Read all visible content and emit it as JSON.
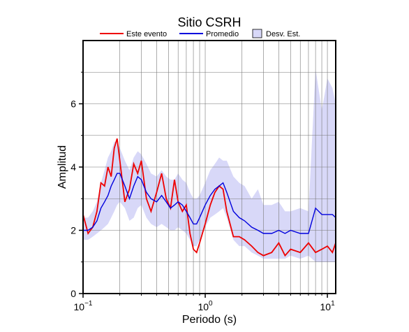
{
  "chart_data": {
    "type": "line",
    "title": "Sitio CSRH",
    "xlabel": "Periodo (s)",
    "ylabel": "Amplitud",
    "xlog": true,
    "grid": true,
    "legend": "top",
    "xlim": [
      0.1,
      11.7
    ],
    "ylim": [
      0,
      8
    ],
    "xticks": [
      {
        "value": 0.1,
        "label": "10",
        "exponent": "−1"
      },
      {
        "value": 1,
        "label": "10",
        "exponent": "0"
      },
      {
        "value": 10,
        "label": "10",
        "exponent": "1"
      }
    ],
    "xminor": [
      0.2,
      0.3,
      0.4,
      0.5,
      0.6,
      0.7,
      0.8,
      0.9,
      2,
      3,
      4,
      5,
      6,
      7,
      8,
      9
    ],
    "yticks": [
      0,
      2,
      4,
      6
    ],
    "yminor": [
      1,
      3,
      5,
      7
    ],
    "x": [
      0.1,
      0.11,
      0.12,
      0.13,
      0.14,
      0.15,
      0.16,
      0.17,
      0.18,
      0.19,
      0.2,
      0.22,
      0.24,
      0.26,
      0.28,
      0.3,
      0.33,
      0.36,
      0.4,
      0.44,
      0.48,
      0.52,
      0.56,
      0.6,
      0.65,
      0.7,
      0.75,
      0.8,
      0.85,
      0.9,
      1.0,
      1.1,
      1.2,
      1.3,
      1.4,
      1.5,
      1.7,
      1.9,
      2.1,
      2.4,
      2.7,
      3,
      3.5,
      4,
      4.5,
      5,
      6,
      7,
      8,
      9,
      10,
      11,
      11.7
    ],
    "series": [
      {
        "name": "Desv. Est.",
        "type": "band",
        "color": "#d8d8f8",
        "upper": [
          2.4,
          2.4,
          2.6,
          2.9,
          3.5,
          3.9,
          4.3,
          4.5,
          4.8,
          4.8,
          4.6,
          4.2,
          3.9,
          4.3,
          4.5,
          4.4,
          4.1,
          3.8,
          3.7,
          3.9,
          3.7,
          3.6,
          3.6,
          3.8,
          3.6,
          3.5,
          3.2,
          3.0,
          3.0,
          3.1,
          3.5,
          3.9,
          4.1,
          4.3,
          4.2,
          4.2,
          3.7,
          3.5,
          3.4,
          3.0,
          3.3,
          2.8,
          2.8,
          2.9,
          2.6,
          2.6,
          2.7,
          2.6,
          7.1,
          5.8,
          6.8,
          6.5,
          6.0
        ],
        "lower": [
          1.7,
          1.7,
          1.8,
          1.9,
          2.0,
          2.1,
          2.2,
          2.4,
          2.6,
          2.8,
          2.9,
          2.7,
          2.3,
          2.4,
          2.7,
          2.8,
          2.4,
          2.2,
          2.1,
          2.2,
          2.1,
          2.0,
          2.0,
          2.1,
          2.0,
          1.9,
          1.7,
          1.5,
          1.5,
          1.7,
          2.1,
          2.4,
          2.5,
          2.6,
          2.7,
          2.4,
          1.7,
          1.5,
          1.5,
          1.3,
          1.2,
          1.1,
          1.1,
          1.1,
          1.1,
          1.2,
          1.1,
          1.2,
          1.0,
          1.0,
          1.0,
          1.0,
          1.0
        ]
      },
      {
        "name": "Este evento",
        "color": "#ee0000",
        "values": [
          2.5,
          1.9,
          2.1,
          2.6,
          3.5,
          3.4,
          4.0,
          3.7,
          4.6,
          4.9,
          4.2,
          2.9,
          3.3,
          4.1,
          3.8,
          4.2,
          3.0,
          2.6,
          3.2,
          3.8,
          3.0,
          2.7,
          3.6,
          2.9,
          2.6,
          2.8,
          1.9,
          1.4,
          1.3,
          1.6,
          2.2,
          2.8,
          3.2,
          3.4,
          3.3,
          2.6,
          1.8,
          1.8,
          1.7,
          1.5,
          1.3,
          1.2,
          1.3,
          1.6,
          1.2,
          1.4,
          1.3,
          1.6,
          1.3,
          1.4,
          1.5,
          1.3,
          1.6
        ]
      },
      {
        "name": "Promedio",
        "color": "#0000dd",
        "values": [
          2.0,
          2.0,
          2.1,
          2.3,
          2.7,
          2.9,
          3.1,
          3.4,
          3.6,
          3.8,
          3.8,
          3.4,
          3.0,
          3.4,
          3.7,
          3.6,
          3.2,
          3.0,
          2.9,
          3.1,
          2.9,
          2.7,
          2.8,
          2.9,
          2.8,
          2.6,
          2.4,
          2.2,
          2.2,
          2.4,
          2.8,
          3.1,
          3.3,
          3.4,
          3.5,
          3.2,
          2.6,
          2.4,
          2.3,
          2.1,
          2.0,
          1.9,
          1.9,
          2.0,
          1.9,
          2.0,
          1.9,
          1.9,
          2.7,
          2.5,
          2.5,
          2.5,
          2.4
        ]
      }
    ]
  }
}
